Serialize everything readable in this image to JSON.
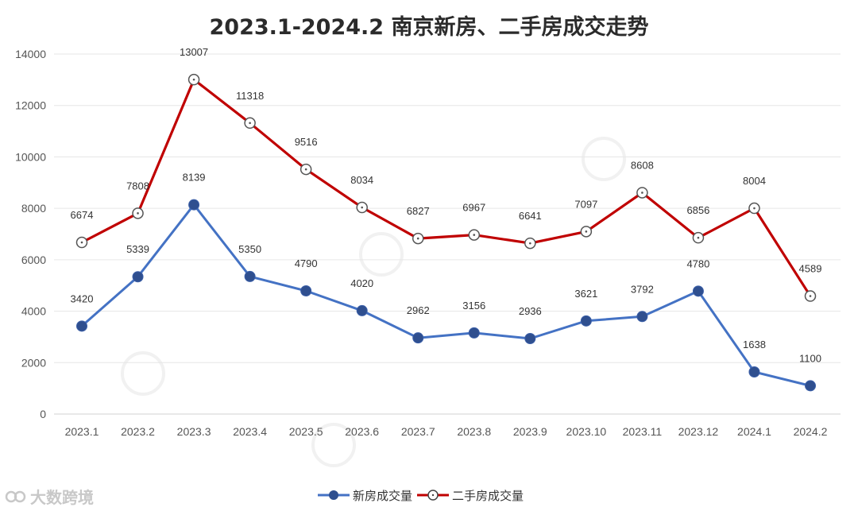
{
  "title": "2023.1-2024.2 南京新房、二手房成交走势",
  "watermark": "大数跨境",
  "colors": {
    "new": "#4472C4",
    "new_marker": "#2F4F8F",
    "second": "#C00000",
    "grid": "#e6e6e6"
  },
  "chart_data": {
    "type": "line",
    "title": "2023.1-2024.2 南京新房、二手房成交走势",
    "xlabel": "",
    "ylabel": "",
    "ylim": [
      0,
      14000
    ],
    "yticks": [
      "0",
      "2000",
      "4000",
      "6000",
      "8000",
      "10000",
      "12000",
      "14000"
    ],
    "grid": true,
    "legend_position": "bottom",
    "categories": [
      "2023.1",
      "2023.2",
      "2023.3",
      "2023.4",
      "2023.5",
      "2023.6",
      "2023.7",
      "2023.8",
      "2023.9",
      "2023.10",
      "2023.11",
      "2023.12",
      "2024.1",
      "2024.2"
    ],
    "series": [
      {
        "name": "新房成交量",
        "marker": "filled-circle",
        "values": [
          3420,
          5339,
          8139,
          5350,
          4790,
          4020,
          2962,
          3156,
          2936,
          3621,
          3792,
          4780,
          1638,
          1100
        ]
      },
      {
        "name": "二手房成交量",
        "marker": "open-circle",
        "values": [
          6674,
          7808,
          13007,
          11318,
          9516,
          8034,
          6827,
          6967,
          6641,
          7097,
          8608,
          6856,
          8004,
          4589
        ]
      }
    ]
  }
}
